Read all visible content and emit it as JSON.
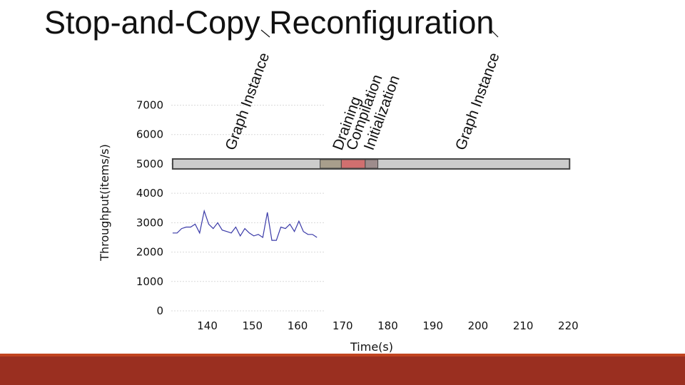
{
  "title": "Stop-and-Copy Reconfiguration",
  "colors": {
    "line": "#3a3aa8",
    "bar_fill": "#cccccc",
    "bar_stroke": "#444444",
    "draining": "#a89e8c",
    "compilation": "#d06f6f",
    "initialization": "#9e8c8c",
    "footer": "#9a2f20"
  },
  "chart_data": {
    "type": "line",
    "xlabel": "Time(s)",
    "ylabel": "Throughput(items/s)",
    "xlim": [
      132,
      222
    ],
    "ylim": [
      0,
      7400
    ],
    "xticks": [
      140,
      150,
      160,
      170,
      180,
      190,
      200,
      210,
      220
    ],
    "yticks": [
      0,
      1000,
      2000,
      3000,
      4000,
      5000,
      6000,
      7000
    ],
    "grid": true,
    "series": [
      {
        "x": [
          132.3,
          133.3,
          134.3,
          135.3,
          136.3,
          137.3,
          138.3,
          139.3,
          140.3,
          141.3,
          142.3,
          143.3,
          144.3,
          145.3,
          146.3,
          147.3,
          148.3,
          149.3,
          150.3,
          151.3,
          152.3,
          153.3,
          154.3,
          155.3,
          156.3,
          157.3,
          158.3,
          159.3,
          160.3,
          161.3,
          162.3,
          163.3,
          164.3
        ],
        "values": [
          2650,
          2650,
          2800,
          2850,
          2850,
          2950,
          2650,
          3400,
          2950,
          2800,
          3000,
          2750,
          2700,
          2650,
          2850,
          2550,
          2800,
          2650,
          2550,
          2600,
          2500,
          3350,
          2400,
          2400,
          2850,
          2800,
          2950,
          2700,
          3050,
          2700,
          2600,
          2600,
          2500
        ]
      }
    ],
    "timeline": {
      "y": 5000,
      "x_range": [
        132.3,
        220.3
      ],
      "segments": [
        {
          "name": "Draining",
          "x_range": [
            165.0,
            169.7
          ]
        },
        {
          "name": "Compilation",
          "x_range": [
            169.7,
            175.0
          ]
        },
        {
          "name": "Initialization",
          "x_range": [
            175.0,
            177.8
          ]
        }
      ]
    },
    "annotations": [
      {
        "text": "Graph Instance",
        "x": 146.0
      },
      {
        "text": "Draining",
        "x": 169.8
      },
      {
        "text": "Compilation",
        "x": 172.8
      },
      {
        "text": "Initialization",
        "x": 176.7
      },
      {
        "text": "Graph Instance",
        "x": 197.0
      }
    ]
  }
}
